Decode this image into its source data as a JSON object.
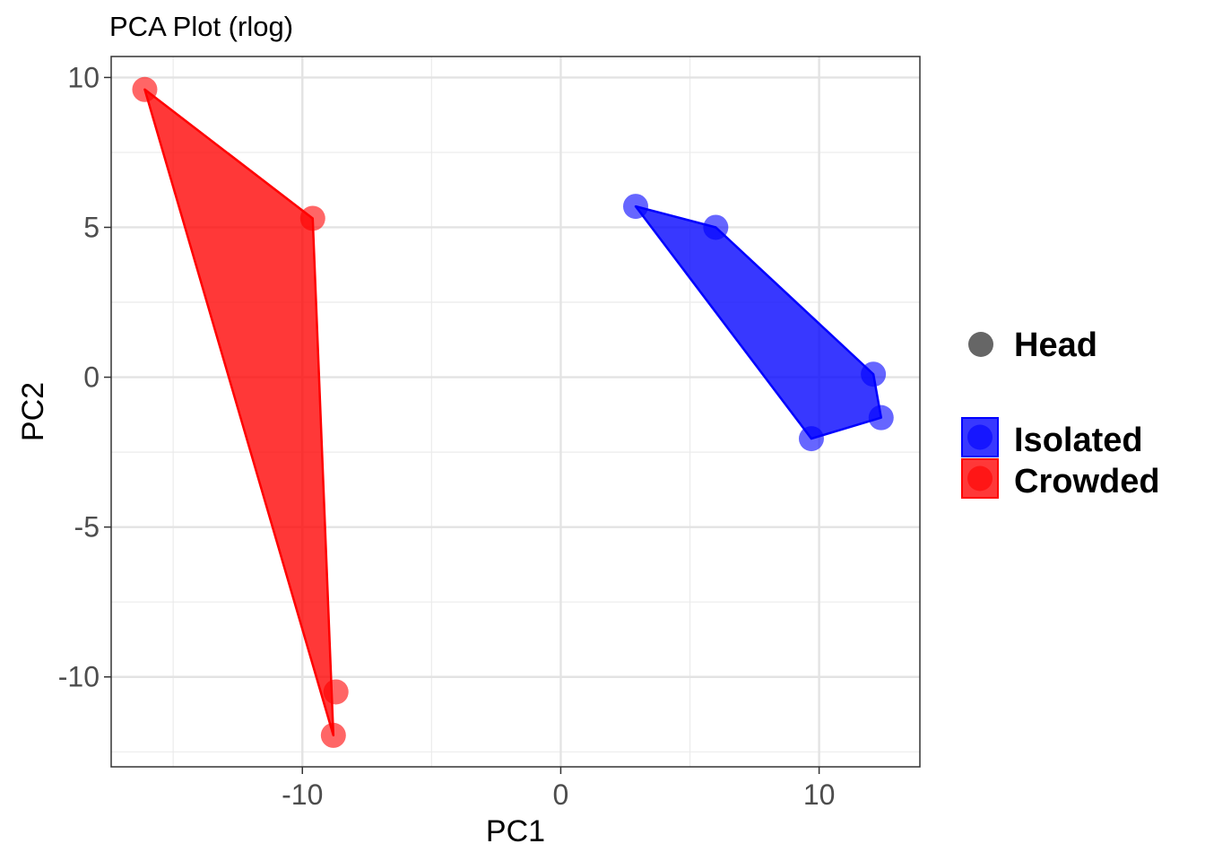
{
  "chart_data": {
    "type": "scatter",
    "title": "PCA Plot (rlog)",
    "xlabel": "PC1",
    "ylabel": "PC2",
    "xlim": [
      -17.4,
      13.9
    ],
    "ylim": [
      -13.0,
      10.7
    ],
    "x_ticks": [
      -10,
      0,
      10
    ],
    "x_tick_labels": [
      "-10",
      "0",
      "10"
    ],
    "y_ticks": [
      -10,
      -5,
      0,
      5,
      10
    ],
    "y_tick_labels": [
      "-10",
      "-5",
      "0",
      "5",
      "10"
    ],
    "grid": true,
    "legend_position": "right",
    "shape_legend": {
      "label": "Head",
      "color": "#666666"
    },
    "series": [
      {
        "name": "Isolated",
        "color": "#0000ff",
        "points": [
          {
            "x": 2.9,
            "y": 5.7
          },
          {
            "x": 6.0,
            "y": 5.0
          },
          {
            "x": 12.1,
            "y": 0.1
          },
          {
            "x": 12.4,
            "y": -1.35
          },
          {
            "x": 9.7,
            "y": -2.05
          }
        ],
        "hull": [
          {
            "x": 2.9,
            "y": 5.7
          },
          {
            "x": 6.0,
            "y": 5.0
          },
          {
            "x": 12.1,
            "y": 0.1
          },
          {
            "x": 12.4,
            "y": -1.35
          },
          {
            "x": 9.7,
            "y": -2.05
          }
        ]
      },
      {
        "name": "Crowded",
        "color": "#ff0000",
        "points": [
          {
            "x": -16.1,
            "y": 9.6
          },
          {
            "x": -9.6,
            "y": 5.3
          },
          {
            "x": -8.7,
            "y": -10.5
          },
          {
            "x": -8.8,
            "y": -11.95
          }
        ],
        "hull": [
          {
            "x": -16.1,
            "y": 9.6
          },
          {
            "x": -9.6,
            "y": 5.3
          },
          {
            "x": -8.8,
            "y": -11.95
          }
        ]
      }
    ]
  }
}
